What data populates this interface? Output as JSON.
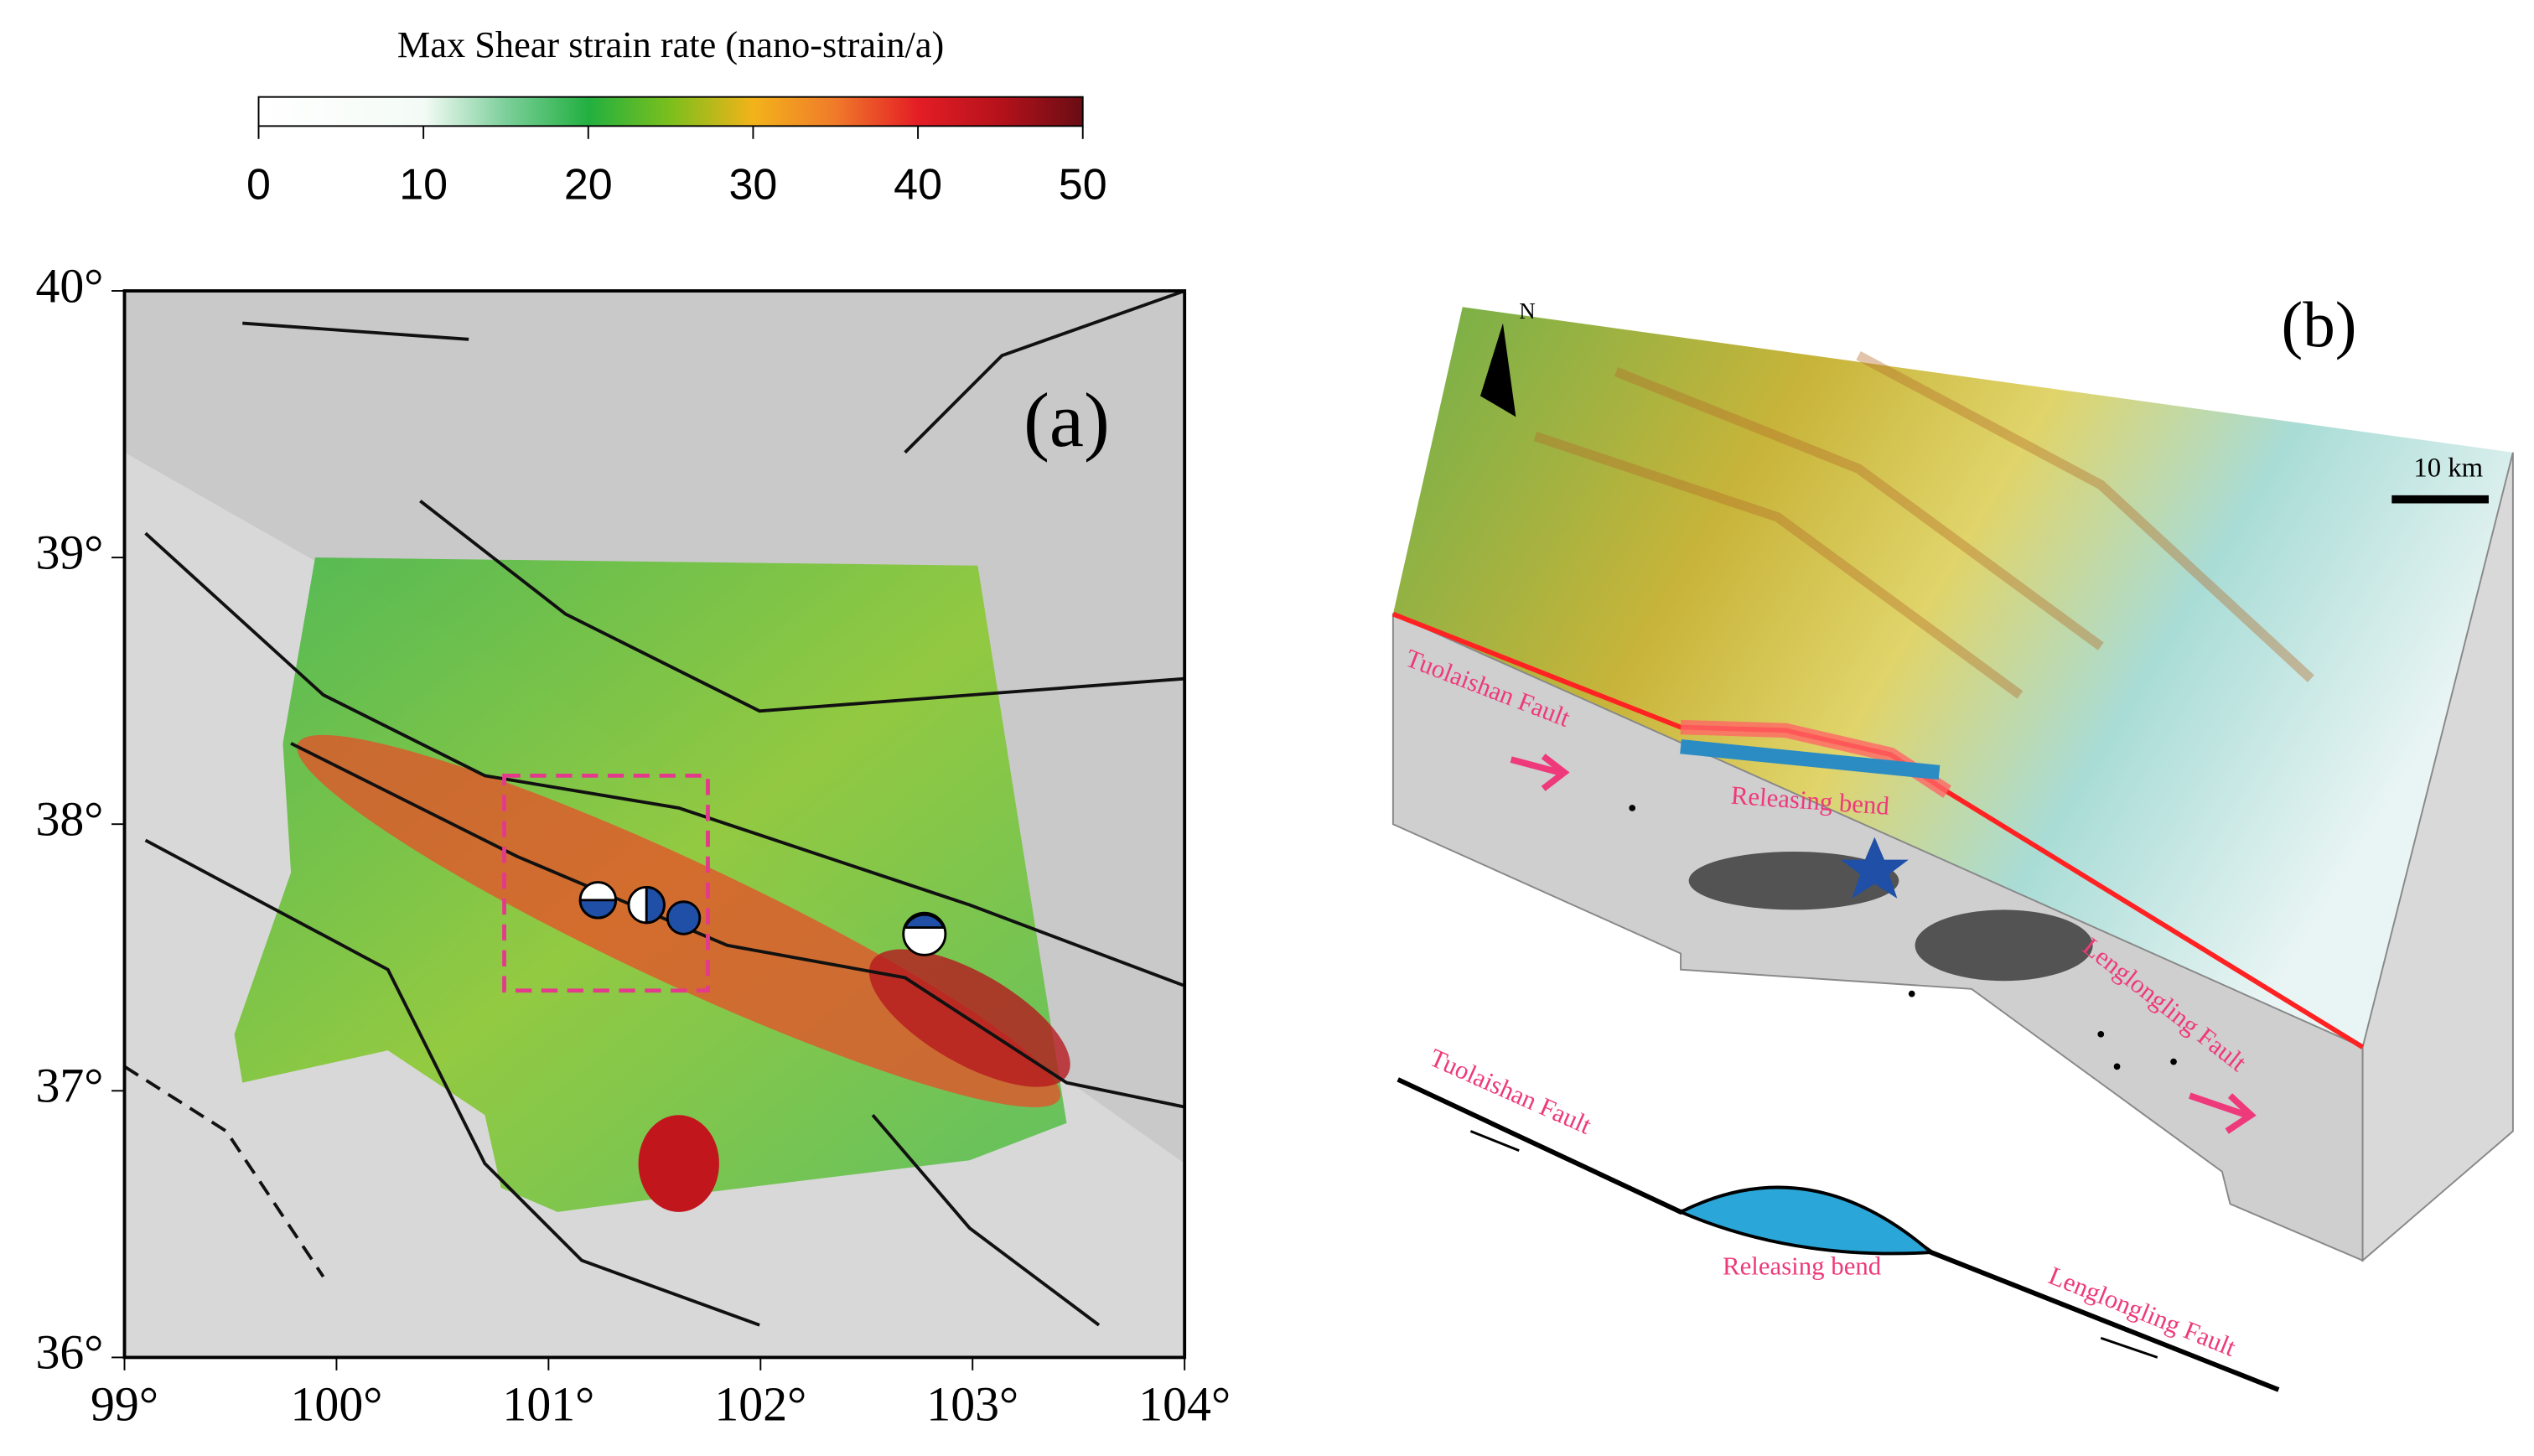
{
  "colorbar": {
    "title": "Max Shear strain rate (nano-strain/a)",
    "lim": [
      0,
      50
    ],
    "ticks": [
      0,
      10,
      20,
      30,
      40,
      50
    ]
  },
  "panel_a": {
    "label": "(a)",
    "xlim": [
      99,
      104
    ],
    "ylim": [
      36,
      40
    ],
    "xticks": [
      {
        "value": 99,
        "label": "99°"
      },
      {
        "value": 100,
        "label": "100°"
      },
      {
        "value": 101,
        "label": "101°"
      },
      {
        "value": 102,
        "label": "102°"
      },
      {
        "value": 103,
        "label": "103°"
      },
      {
        "value": 104,
        "label": "104°"
      }
    ],
    "yticks": [
      {
        "value": 36,
        "label": "36°"
      },
      {
        "value": 37,
        "label": "37°"
      },
      {
        "value": 38,
        "label": "38°"
      },
      {
        "value": 39,
        "label": "39°"
      },
      {
        "value": 40,
        "label": "40°"
      }
    ]
  },
  "panel_b": {
    "label": "(b)",
    "north": "N",
    "scale_bar": "10 km",
    "block_labels": [
      "Tuolaishan Fault",
      "Releasing bend",
      "Lenglongling Fault"
    ],
    "sketch_labels": [
      "Tuolaishan Fault",
      "Releasing bend",
      "Lenglongling Fault"
    ]
  }
}
